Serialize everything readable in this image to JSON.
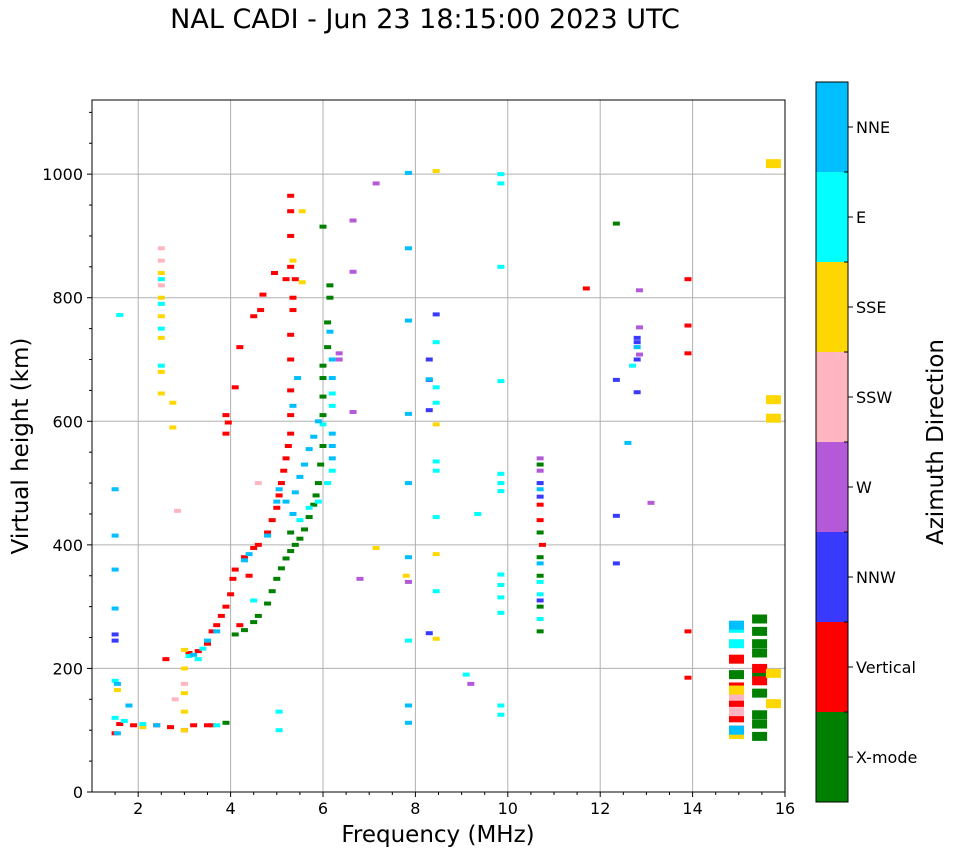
{
  "title": "NAL CADI - Jun 23 18:15:00 2023 UTC",
  "chart_data": {
    "type": "scatter",
    "xlabel": "Frequency (MHz)",
    "ylabel": "Virtual height (km)",
    "xlim": [
      1,
      16
    ],
    "ylim": [
      0,
      1120
    ],
    "xticks": [
      2,
      4,
      6,
      8,
      10,
      12,
      14,
      16
    ],
    "yticks": [
      0,
      200,
      400,
      600,
      800,
      1000
    ],
    "grid": true,
    "colorbar": {
      "label": "Azimuth Direction",
      "categories": [
        {
          "name": "X-mode",
          "color": "#008000"
        },
        {
          "name": "Vertical",
          "color": "#ff0000"
        },
        {
          "name": "NNW",
          "color": "#3a3aff"
        },
        {
          "name": "W",
          "color": "#b45ad8"
        },
        {
          "name": "SSW",
          "color": "#ffb6c1"
        },
        {
          "name": "SSE",
          "color": "#ffd700"
        },
        {
          "name": "E",
          "color": "#00ffff"
        },
        {
          "name": "NNE",
          "color": "#00bfff"
        }
      ]
    },
    "series": [
      {
        "name": "X-mode",
        "points": [
          [
            3.9,
            112
          ],
          [
            4.1,
            255
          ],
          [
            4.3,
            262
          ],
          [
            4.5,
            275
          ],
          [
            4.6,
            285
          ],
          [
            4.8,
            305
          ],
          [
            4.9,
            325
          ],
          [
            5.0,
            345
          ],
          [
            5.1,
            362
          ],
          [
            5.2,
            378
          ],
          [
            5.3,
            390
          ],
          [
            5.4,
            400
          ],
          [
            5.5,
            410
          ],
          [
            5.6,
            425
          ],
          [
            5.7,
            445
          ],
          [
            5.8,
            465
          ],
          [
            5.85,
            480
          ],
          [
            5.9,
            500
          ],
          [
            5.95,
            530
          ],
          [
            6.0,
            560
          ],
          [
            6.0,
            610
          ],
          [
            6.0,
            640
          ],
          [
            6.0,
            670
          ],
          [
            6.0,
            690
          ],
          [
            6.1,
            720
          ],
          [
            6.1,
            760
          ],
          [
            6.15,
            800
          ],
          [
            6.15,
            820
          ],
          [
            6.0,
            915
          ],
          [
            5.3,
            420
          ],
          [
            12.35,
            920
          ],
          [
            15.45,
            90
          ],
          [
            15.45,
            110
          ],
          [
            15.45,
            125
          ],
          [
            15.45,
            160
          ],
          [
            15.45,
            190
          ],
          [
            15.45,
            225
          ],
          [
            15.45,
            240
          ],
          [
            15.45,
            260
          ],
          [
            15.45,
            280
          ],
          [
            10.7,
            260
          ],
          [
            10.7,
            300
          ],
          [
            10.7,
            350
          ],
          [
            10.7,
            380
          ],
          [
            10.7,
            420
          ],
          [
            10.7,
            530
          ],
          [
            14.95,
            190
          ]
        ]
      },
      {
        "name": "Vertical",
        "points": [
          [
            1.5,
            95
          ],
          [
            1.6,
            110
          ],
          [
            1.9,
            108
          ],
          [
            2.4,
            108
          ],
          [
            2.7,
            105
          ],
          [
            3.0,
            100
          ],
          [
            3.2,
            108
          ],
          [
            3.5,
            108
          ],
          [
            3.6,
            108
          ],
          [
            2.6,
            215
          ],
          [
            3.1,
            225
          ],
          [
            3.3,
            228
          ],
          [
            3.5,
            240
          ],
          [
            3.6,
            260
          ],
          [
            3.7,
            270
          ],
          [
            3.8,
            285
          ],
          [
            3.9,
            300
          ],
          [
            4.0,
            320
          ],
          [
            4.05,
            345
          ],
          [
            4.1,
            360
          ],
          [
            4.3,
            380
          ],
          [
            4.5,
            395
          ],
          [
            4.6,
            400
          ],
          [
            4.8,
            420
          ],
          [
            4.9,
            440
          ],
          [
            5.0,
            460
          ],
          [
            5.05,
            480
          ],
          [
            5.1,
            500
          ],
          [
            5.15,
            520
          ],
          [
            5.2,
            540
          ],
          [
            5.25,
            560
          ],
          [
            5.3,
            580
          ],
          [
            5.3,
            610
          ],
          [
            5.3,
            650
          ],
          [
            5.3,
            700
          ],
          [
            5.3,
            740
          ],
          [
            5.35,
            780
          ],
          [
            5.35,
            800
          ],
          [
            5.3,
            850
          ],
          [
            5.3,
            900
          ],
          [
            5.3,
            940
          ],
          [
            5.3,
            965
          ],
          [
            5.4,
            830
          ],
          [
            5.2,
            830
          ],
          [
            4.2,
            720
          ],
          [
            4.1,
            655
          ],
          [
            3.9,
            610
          ],
          [
            3.9,
            580
          ],
          [
            4.7,
            805
          ],
          [
            4.95,
            840
          ],
          [
            4.5,
            770
          ],
          [
            4.65,
            780
          ],
          [
            3.95,
            598
          ],
          [
            4.4,
            350
          ],
          [
            4.2,
            270
          ],
          [
            10.75,
            400
          ],
          [
            10.7,
            440
          ],
          [
            10.7,
            465
          ],
          [
            11.7,
            815
          ],
          [
            13.9,
            830
          ],
          [
            13.9,
            755
          ],
          [
            13.9,
            710
          ],
          [
            13.9,
            260
          ],
          [
            13.9,
            185
          ],
          [
            14.95,
            100
          ],
          [
            14.95,
            120
          ],
          [
            14.95,
            145
          ],
          [
            14.95,
            170
          ],
          [
            14.95,
            215
          ],
          [
            15.45,
            180
          ],
          [
            15.45,
            200
          ]
        ]
      },
      {
        "name": "NNW",
        "points": [
          [
            1.5,
            255
          ],
          [
            1.5,
            245
          ],
          [
            8.3,
            700
          ],
          [
            8.3,
            667
          ],
          [
            8.3,
            618
          ],
          [
            8.3,
            257
          ],
          [
            8.45,
            773
          ],
          [
            12.35,
            667
          ],
          [
            12.35,
            447
          ],
          [
            12.35,
            370
          ],
          [
            12.8,
            735
          ],
          [
            12.8,
            728
          ],
          [
            12.8,
            700
          ],
          [
            12.8,
            647
          ],
          [
            10.7,
            500
          ],
          [
            10.7,
            478
          ],
          [
            10.7,
            310
          ]
        ]
      },
      {
        "name": "W",
        "points": [
          [
            6.35,
            710
          ],
          [
            6.35,
            700
          ],
          [
            6.65,
            925
          ],
          [
            6.65,
            842
          ],
          [
            6.65,
            615
          ],
          [
            6.8,
            345
          ],
          [
            7.85,
            340
          ],
          [
            7.15,
            985
          ],
          [
            9.2,
            175
          ],
          [
            12.85,
            812
          ],
          [
            12.85,
            752
          ],
          [
            12.85,
            708
          ],
          [
            13.1,
            468
          ],
          [
            10.7,
            540
          ],
          [
            10.7,
            520
          ]
        ]
      },
      {
        "name": "SSW",
        "points": [
          [
            2.5,
            880
          ],
          [
            2.5,
            860
          ],
          [
            2.5,
            820
          ],
          [
            2.8,
            150
          ],
          [
            2.85,
            455
          ],
          [
            3.0,
            175
          ],
          [
            4.6,
            500
          ],
          [
            14.95,
            130
          ],
          [
            14.95,
            155
          ]
        ]
      },
      {
        "name": "SSE",
        "points": [
          [
            2.5,
            840
          ],
          [
            2.5,
            800
          ],
          [
            2.5,
            770
          ],
          [
            2.5,
            735
          ],
          [
            2.5,
            680
          ],
          [
            2.5,
            645
          ],
          [
            2.75,
            630
          ],
          [
            2.75,
            590
          ],
          [
            3.0,
            230
          ],
          [
            3.0,
            200
          ],
          [
            3.0,
            160
          ],
          [
            3.0,
            130
          ],
          [
            3.0,
            100
          ],
          [
            1.55,
            165
          ],
          [
            5.35,
            860
          ],
          [
            5.55,
            825
          ],
          [
            5.55,
            940
          ],
          [
            7.15,
            395
          ],
          [
            7.8,
            350
          ],
          [
            8.45,
            1005
          ],
          [
            8.45,
            595
          ],
          [
            8.45,
            385
          ],
          [
            8.45,
            248
          ],
          [
            14.95,
            93
          ],
          [
            14.95,
            165
          ],
          [
            15.75,
            1017
          ],
          [
            15.75,
            635
          ],
          [
            15.75,
            605
          ],
          [
            15.75,
            192
          ],
          [
            15.75,
            143
          ],
          [
            2.1,
            105
          ]
        ]
      },
      {
        "name": "E",
        "points": [
          [
            1.5,
            180
          ],
          [
            1.5,
            120
          ],
          [
            1.7,
            115
          ],
          [
            2.1,
            110
          ],
          [
            2.5,
            830
          ],
          [
            2.5,
            790
          ],
          [
            2.5,
            750
          ],
          [
            2.5,
            690
          ],
          [
            3.1,
            220
          ],
          [
            3.3,
            215
          ],
          [
            3.4,
            232
          ],
          [
            3.7,
            108
          ],
          [
            5.05,
            100
          ],
          [
            5.05,
            130
          ],
          [
            5.5,
            440
          ],
          [
            5.7,
            460
          ],
          [
            5.9,
            470
          ],
          [
            6.1,
            500
          ],
          [
            6.2,
            520
          ],
          [
            6.0,
            595
          ],
          [
            6.2,
            645
          ],
          [
            6.2,
            625
          ],
          [
            4.5,
            310
          ],
          [
            8.45,
            728
          ],
          [
            8.45,
            655
          ],
          [
            8.45,
            630
          ],
          [
            8.45,
            535
          ],
          [
            8.45,
            520
          ],
          [
            8.45,
            445
          ],
          [
            8.45,
            325
          ],
          [
            9.1,
            190
          ],
          [
            9.35,
            450
          ],
          [
            9.85,
            1000
          ],
          [
            9.85,
            985
          ],
          [
            9.85,
            850
          ],
          [
            9.85,
            665
          ],
          [
            9.85,
            515
          ],
          [
            9.85,
            500
          ],
          [
            9.85,
            487
          ],
          [
            9.85,
            352
          ],
          [
            9.85,
            335
          ],
          [
            9.85,
            315
          ],
          [
            9.85,
            290
          ],
          [
            9.85,
            140
          ],
          [
            9.85,
            125
          ],
          [
            7.85,
            245
          ],
          [
            12.7,
            690
          ],
          [
            10.7,
            320
          ],
          [
            10.7,
            340
          ],
          [
            10.7,
            280
          ],
          [
            14.95,
            265
          ],
          [
            14.95,
            240
          ],
          [
            1.6,
            772
          ]
        ]
      },
      {
        "name": "NNE",
        "points": [
          [
            1.5,
            490
          ],
          [
            1.5,
            415
          ],
          [
            1.5,
            360
          ],
          [
            1.5,
            297
          ],
          [
            1.55,
            175
          ],
          [
            1.55,
            95
          ],
          [
            1.8,
            140
          ],
          [
            2.4,
            108
          ],
          [
            3.2,
            222
          ],
          [
            3.5,
            245
          ],
          [
            3.7,
            260
          ],
          [
            4.3,
            375
          ],
          [
            4.4,
            385
          ],
          [
            4.8,
            415
          ],
          [
            5.0,
            470
          ],
          [
            5.05,
            490
          ],
          [
            5.2,
            470
          ],
          [
            5.35,
            450
          ],
          [
            5.4,
            485
          ],
          [
            5.5,
            510
          ],
          [
            5.6,
            530
          ],
          [
            5.7,
            555
          ],
          [
            5.8,
            575
          ],
          [
            5.9,
            600
          ],
          [
            6.2,
            560
          ],
          [
            6.2,
            540
          ],
          [
            6.2,
            580
          ],
          [
            6.2,
            700
          ],
          [
            6.2,
            670
          ],
          [
            6.15,
            745
          ],
          [
            5.45,
            670
          ],
          [
            5.35,
            625
          ],
          [
            7.85,
            1002
          ],
          [
            7.85,
            880
          ],
          [
            7.85,
            763
          ],
          [
            7.85,
            612
          ],
          [
            7.85,
            500
          ],
          [
            7.85,
            380
          ],
          [
            7.85,
            140
          ],
          [
            7.85,
            112
          ],
          [
            8.3,
            668
          ],
          [
            12.6,
            565
          ],
          [
            12.8,
            720
          ],
          [
            10.7,
            490
          ],
          [
            10.7,
            370
          ],
          [
            14.95,
            100
          ],
          [
            14.95,
            270
          ]
        ]
      }
    ]
  }
}
